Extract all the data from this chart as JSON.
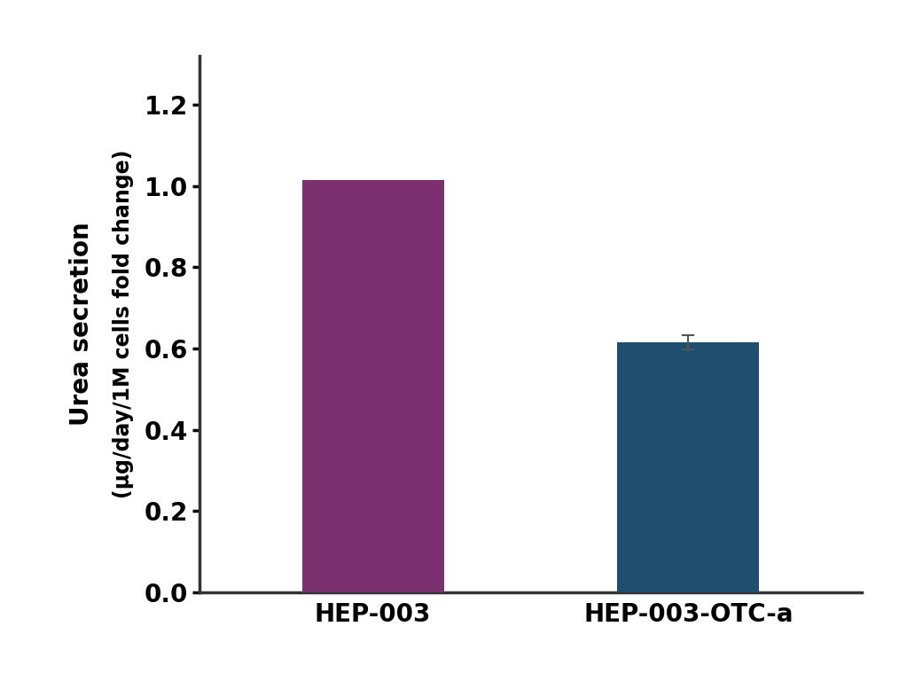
{
  "categories": [
    "HEP-003",
    "HEP-003-OTC-a"
  ],
  "values": [
    1.015,
    0.615
  ],
  "errors": [
    0.0,
    0.018
  ],
  "bar_colors": [
    "#7B3070",
    "#1F4E6E"
  ],
  "ylabel_outer": "Urea secretion",
  "ylabel_inner": "(µg/day/1M cells fold change)",
  "ylim": [
    0,
    1.32
  ],
  "yticks": [
    0.0,
    0.2,
    0.4,
    0.6,
    0.8,
    1.0,
    1.2
  ],
  "bar_width": 0.45,
  "background_color": "#ffffff",
  "spine_color": "#333333",
  "tick_label_fontsize": 20,
  "ylabel_fontsize": 20,
  "ylabel_inner_fontsize": 17,
  "error_capsize": 5,
  "error_color": "#555555",
  "error_linewidth": 1.5
}
